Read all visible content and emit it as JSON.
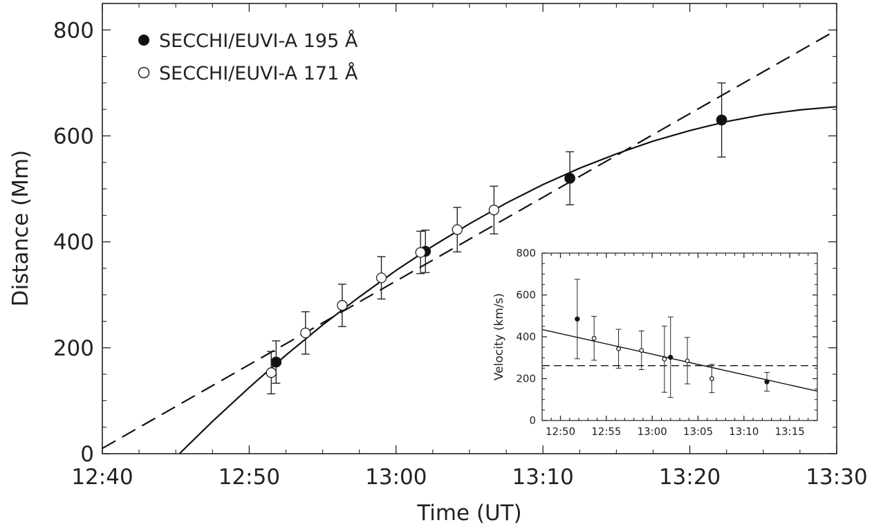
{
  "chart_data": [
    {
      "type": "scatter",
      "xlabel": "Time (UT)",
      "ylabel": "Distance (Mm)",
      "x_ticks": [
        "12:40",
        "12:50",
        "13:00",
        "13:10",
        "13:20",
        "13:30"
      ],
      "y_ticks": [
        "0",
        "200",
        "400",
        "600",
        "800"
      ],
      "xlim": [
        "12:40",
        "13:30"
      ],
      "ylim": [
        0,
        850
      ],
      "legend_position": "top-left",
      "series": [
        {
          "name": "SECCHI/EUVI-A 195 Å",
          "marker": "filled-circle",
          "points": [
            {
              "x": "12:51:50",
              "y": 173,
              "err": 40
            },
            {
              "x": "13:02:00",
              "y": 382,
              "err": 40
            },
            {
              "x": "13:11:50",
              "y": 520,
              "err": 50
            },
            {
              "x": "13:22:10",
              "y": 630,
              "err": 70
            }
          ]
        },
        {
          "name": "SECCHI/EUVI-A 171 Å",
          "marker": "open-circle",
          "points": [
            {
              "x": "12:51:30",
              "y": 153,
              "err": 40
            },
            {
              "x": "12:53:50",
              "y": 228,
              "err": 40
            },
            {
              "x": "12:56:20",
              "y": 280,
              "err": 40
            },
            {
              "x": "12:59:00",
              "y": 332,
              "err": 40
            },
            {
              "x": "13:01:40",
              "y": 380,
              "err": 40
            },
            {
              "x": "13:04:10",
              "y": 423,
              "err": 42
            },
            {
              "x": "13:06:40",
              "y": 460,
              "err": 45
            }
          ]
        }
      ],
      "fits": [
        {
          "style": "solid",
          "points": [
            {
              "x": "12:45:15",
              "y": 0
            },
            {
              "x": "12:47:30",
              "y": 61
            },
            {
              "x": "12:50:00",
              "y": 125
            },
            {
              "x": "12:52:30",
              "y": 186
            },
            {
              "x": "12:55:00",
              "y": 243
            },
            {
              "x": "12:57:30",
              "y": 296
            },
            {
              "x": "13:00:00",
              "y": 346
            },
            {
              "x": "13:02:30",
              "y": 392
            },
            {
              "x": "13:05:00",
              "y": 434
            },
            {
              "x": "13:07:30",
              "y": 473
            },
            {
              "x": "13:10:00",
              "y": 508
            },
            {
              "x": "13:12:30",
              "y": 539
            },
            {
              "x": "13:15:00",
              "y": 566
            },
            {
              "x": "13:17:30",
              "y": 590
            },
            {
              "x": "13:20:00",
              "y": 610
            },
            {
              "x": "13:22:30",
              "y": 627
            },
            {
              "x": "13:25:00",
              "y": 640
            },
            {
              "x": "13:27:30",
              "y": 649
            },
            {
              "x": "13:30:00",
              "y": 655
            }
          ]
        },
        {
          "style": "dashed",
          "points": [
            {
              "x": "12:40:00",
              "y": 10
            },
            {
              "x": "13:30:00",
              "y": 800
            }
          ]
        }
      ]
    },
    {
      "type": "scatter",
      "position": "inset-bottom-right",
      "xlabel": "",
      "ylabel": "Velocity (km/s)",
      "x_ticks": [
        "12:50",
        "12:55",
        "13:00",
        "13:05",
        "13:10",
        "13:15"
      ],
      "y_ticks": [
        "0",
        "200",
        "400",
        "600",
        "800"
      ],
      "xlim": [
        "12:48",
        "13:18"
      ],
      "ylim": [
        0,
        800
      ],
      "series": [
        {
          "name": "SECCHI/EUVI-A 195 Å",
          "marker": "filled-circle",
          "points": [
            {
              "x": "12:51:50",
              "y": 485,
              "lo": 295,
              "hi": 675
            },
            {
              "x": "13:02:00",
              "y": 302,
              "lo": 110,
              "hi": 495
            },
            {
              "x": "13:12:30",
              "y": 185,
              "lo": 140,
              "hi": 230
            }
          ]
        },
        {
          "name": "SECCHI/EUVI-A 171 Å",
          "marker": "open-circle",
          "points": [
            {
              "x": "12:53:40",
              "y": 393,
              "lo": 288,
              "hi": 498
            },
            {
              "x": "12:56:20",
              "y": 343,
              "lo": 250,
              "hi": 436
            },
            {
              "x": "12:58:50",
              "y": 335,
              "lo": 243,
              "hi": 428
            },
            {
              "x": "13:01:20",
              "y": 293,
              "lo": 135,
              "hi": 451
            },
            {
              "x": "13:03:50",
              "y": 285,
              "lo": 175,
              "hi": 397
            },
            {
              "x": "13:06:30",
              "y": 200,
              "lo": 133,
              "hi": 268
            }
          ]
        }
      ],
      "fits": [
        {
          "style": "solid",
          "points": [
            {
              "x": "12:48:00",
              "y": 435
            },
            {
              "x": "13:18:00",
              "y": 140
            }
          ]
        },
        {
          "style": "dashed",
          "points": [
            {
              "x": "12:48:00",
              "y": 262
            },
            {
              "x": "13:18:00",
              "y": 262
            }
          ]
        }
      ]
    }
  ]
}
